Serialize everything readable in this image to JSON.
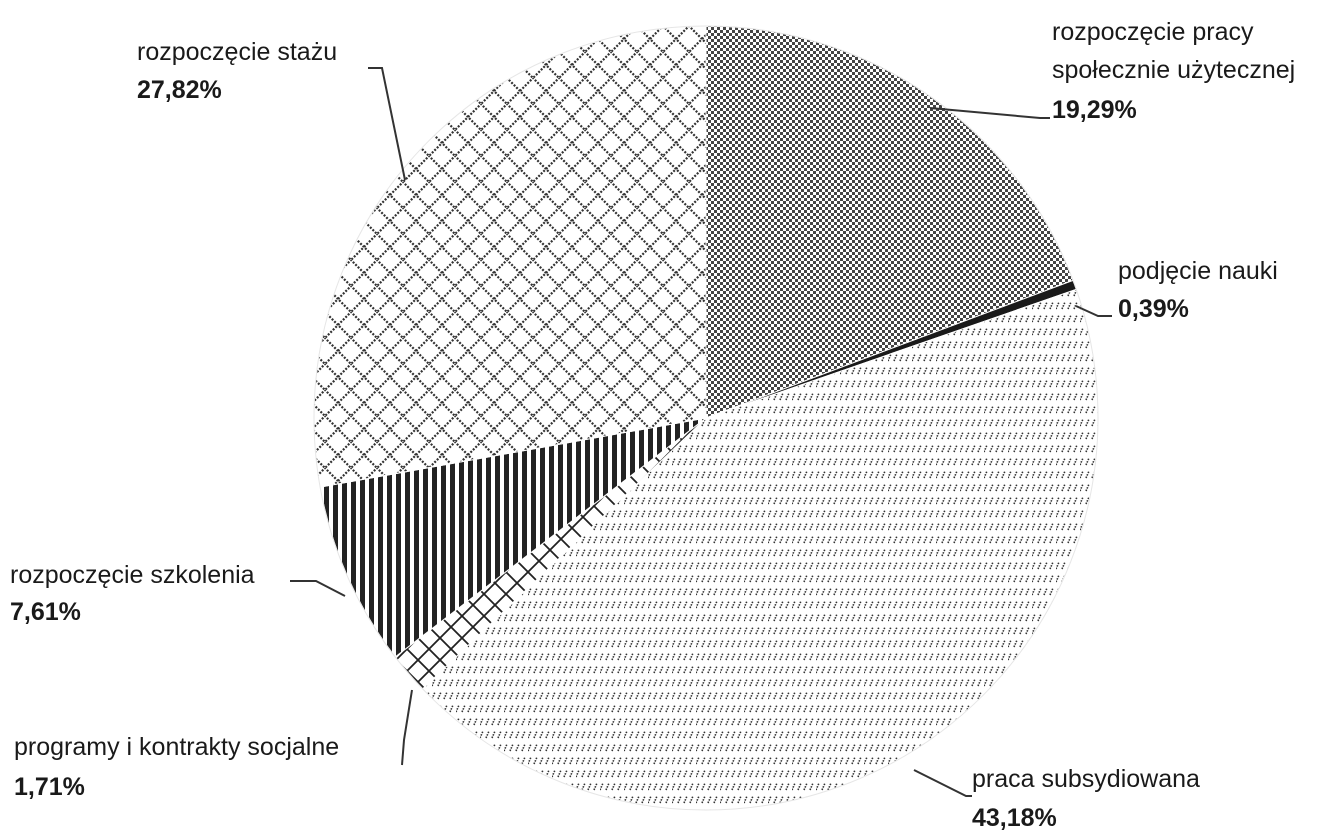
{
  "chart_data": {
    "type": "pie",
    "slices": [
      {
        "name": "rozpoczęcie pracy",
        "name_line2": "społecznie użytecznej",
        "value_label": "19,29%",
        "value": 19.29,
        "pattern": "checker"
      },
      {
        "name": "podjęcie nauki",
        "value_label": "0,39%",
        "value": 0.39,
        "pattern": "solid"
      },
      {
        "name": "praca subsydiowana",
        "value_label": "43,18%",
        "value": 43.18,
        "pattern": "diagonal"
      },
      {
        "name": "programy i kontrakty socjalne",
        "value_label": "1,71%",
        "value": 1.71,
        "pattern": "crosshatch"
      },
      {
        "name": "rozpoczęcie szkolenia",
        "value_label": "7,61%",
        "value": 7.61,
        "pattern": "vertical"
      },
      {
        "name": "rozpoczęcie stażu",
        "value_label": "27,82%",
        "value": 27.82,
        "pattern": "brick"
      }
    ]
  }
}
